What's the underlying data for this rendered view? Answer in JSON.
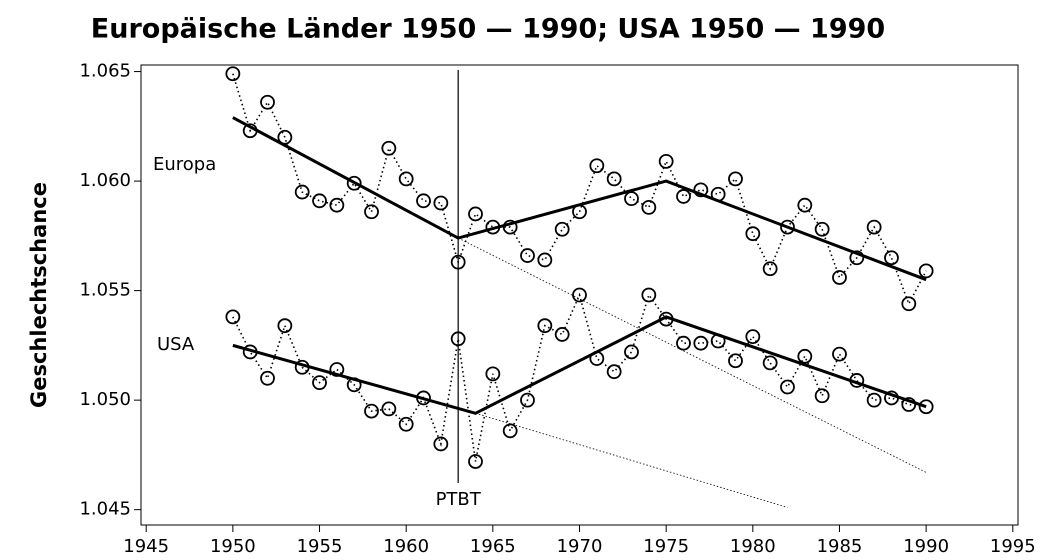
{
  "chart_data": {
    "type": "line",
    "title": "Europäische Länder 1950 — 1990; USA 1950 — 1990",
    "y_label": "Geschlechtschance",
    "x": [
      1950,
      1951,
      1952,
      1953,
      1954,
      1955,
      1956,
      1957,
      1958,
      1959,
      1960,
      1961,
      1962,
      1963,
      1964,
      1965,
      1966,
      1967,
      1968,
      1969,
      1970,
      1971,
      1972,
      1973,
      1974,
      1975,
      1976,
      1977,
      1978,
      1979,
      1980,
      1981,
      1982,
      1983,
      1984,
      1985,
      1986,
      1987,
      1988,
      1989,
      1990
    ],
    "series": [
      {
        "name": "Europa",
        "color": "#000000",
        "values": [
          1.0649,
          1.0623,
          1.0636,
          1.062,
          1.0595,
          1.0591,
          1.0589,
          1.0599,
          1.0586,
          1.0615,
          1.0601,
          1.0591,
          1.059,
          1.0563,
          1.0585,
          1.0579,
          1.0579,
          1.0566,
          1.0564,
          1.0578,
          1.0586,
          1.0607,
          1.0601,
          1.0592,
          1.0588,
          1.0609,
          1.0593,
          1.0596,
          1.0594,
          1.0601,
          1.0576,
          1.056,
          1.0579,
          1.0589,
          1.0578,
          1.0556,
          1.0565,
          1.0579,
          1.0565,
          1.0544,
          1.0559
        ],
        "trend": {
          "x": [
            1950,
            1963,
            1975,
            1990
          ],
          "values": [
            1.0629,
            1.0574,
            1.06,
            1.0555
          ]
        },
        "extension": {
          "x": [
            1963,
            1990
          ],
          "values": [
            1.0574,
            1.0467
          ]
        }
      },
      {
        "name": "USA",
        "color": "#000000",
        "values": [
          1.0538,
          1.0522,
          1.051,
          1.0534,
          1.0515,
          1.0508,
          1.0514,
          1.0507,
          1.0495,
          1.0496,
          1.0489,
          1.0501,
          1.048,
          1.0528,
          1.0472,
          1.0512,
          1.0486,
          1.05,
          1.0534,
          1.053,
          1.0548,
          1.0519,
          1.0513,
          1.0522,
          1.0548,
          1.0537,
          1.0526,
          1.0526,
          1.0527,
          1.0518,
          1.0529,
          1.0517,
          1.0506,
          1.052,
          1.0502,
          1.0521,
          1.0509,
          1.05,
          1.0501,
          1.0498,
          1.0497
        ],
        "trend": {
          "x": [
            1950,
            1964,
            1975,
            1990
          ],
          "values": [
            1.0525,
            1.0494,
            1.0538,
            1.0497
          ]
        },
        "extension": {
          "x": [
            1964,
            1982
          ],
          "values": [
            1.0494,
            1.0451
          ]
        }
      }
    ],
    "vline": {
      "x": 1963,
      "label": "PTBT"
    },
    "xlim": [
      1944.7,
      1995.3
    ],
    "xticks": [
      1945,
      1950,
      1955,
      1960,
      1965,
      1970,
      1975,
      1980,
      1985,
      1990,
      1995
    ],
    "ylim": [
      1.0443,
      1.0653
    ],
    "yticks": [
      1.045,
      {
        "value": 1.05,
        "label": "1.050"
      },
      1.055,
      {
        "value": 1.06,
        "label": "1.060"
      },
      1.065
    ]
  }
}
